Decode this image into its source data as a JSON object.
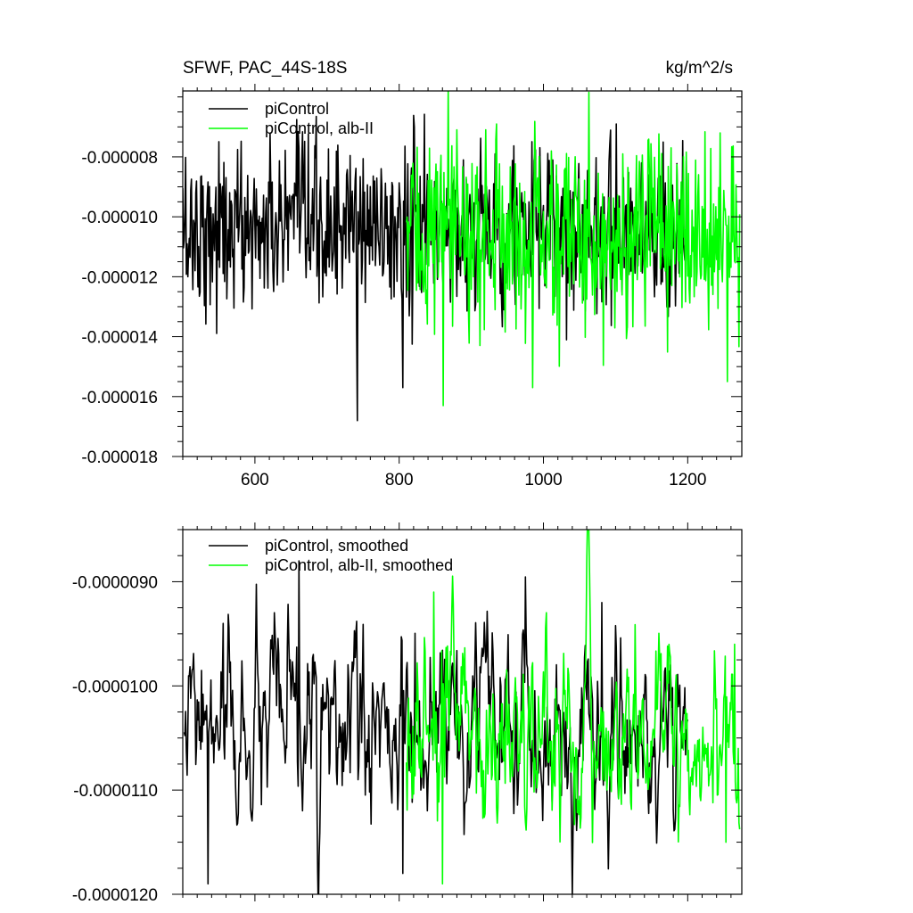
{
  "chart_data": [
    {
      "type": "line",
      "title": "SFWF, PAC_44S-18S",
      "units": "kg/m^2/s",
      "xlim": [
        500,
        1275
      ],
      "ylim": [
        -1.8e-05,
        -5.8e-06
      ],
      "x_ticks": [
        600,
        800,
        1000,
        1200
      ],
      "x_tick_labels": [
        "600",
        "800",
        "1000",
        "1200"
      ],
      "y_ticks": [
        -1.8e-05,
        -1.6e-05,
        -1.4e-05,
        -1.2e-05,
        -1e-05,
        -8e-06
      ],
      "y_tick_labels": [
        "-0.000018",
        "-0.000016",
        "-0.000014",
        "-0.000012",
        "-0.000010",
        "-0.000008"
      ],
      "legend_position": "top-left",
      "series": [
        {
          "name": "piControl",
          "color": "#000000",
          "x_range": [
            500,
            1200
          ],
          "mean": -1.04e-05,
          "std": 1.4e-06,
          "extremes": [
            [
              661,
              -7.7e-06
            ],
            [
              742,
              -1.68e-05
            ],
            [
              1101,
              -6.9e-06
            ],
            [
              1201,
              -1.59e-05
            ],
            [
              805,
              -1.57e-05
            ]
          ]
        },
        {
          "name": "piControl, alb-II",
          "color": "#00ff00",
          "x_range": [
            810,
            1272
          ],
          "mean": -1.06e-05,
          "std": 1.6e-06,
          "extremes": [
            [
              861,
              -1.63e-05
            ],
            [
              935,
              -6.9e-06
            ],
            [
              985,
              -1.57e-05
            ],
            [
              1255,
              -1.55e-05
            ],
            [
              1245,
              -7.2e-06
            ]
          ]
        }
      ]
    },
    {
      "type": "line",
      "xlim": [
        500,
        1275
      ],
      "ylim": [
        -1.2e-05,
        -8.5e-06
      ],
      "x_ticks": [
        600,
        800,
        1000,
        1200
      ],
      "y_ticks": [
        -1.2e-05,
        -1.1e-05,
        -1e-05,
        -9e-06
      ],
      "y_tick_labels": [
        "-0.0000120",
        "-0.0000110",
        "-0.0000100",
        "-0.0000090"
      ],
      "legend_position": "top-left",
      "series": [
        {
          "name": "piControl, smoothed",
          "color": "#000000",
          "x_range": [
            502,
            1200
          ],
          "mean": -1.05e-05,
          "std": 4.5e-07,
          "extremes": [
            [
              535,
              -1.19e-05
            ],
            [
              661,
              -8.8e-06
            ],
            [
              556,
              -9.4e-06
            ],
            [
              1081,
              -9.2e-06
            ],
            [
              805,
              -1.18e-05
            ]
          ]
        },
        {
          "name": "piControl, alb-II, smoothed",
          "color": "#00ff00",
          "x_range": [
            810,
            1272
          ],
          "mean": -1.05e-05,
          "std": 4.5e-07,
          "extremes": [
            [
              848,
              -9.1e-06
            ],
            [
              860,
              -1.19e-05
            ],
            [
              1253,
              -1.15e-05
            ],
            [
              1265,
              -9.6e-06
            ]
          ]
        }
      ]
    }
  ]
}
